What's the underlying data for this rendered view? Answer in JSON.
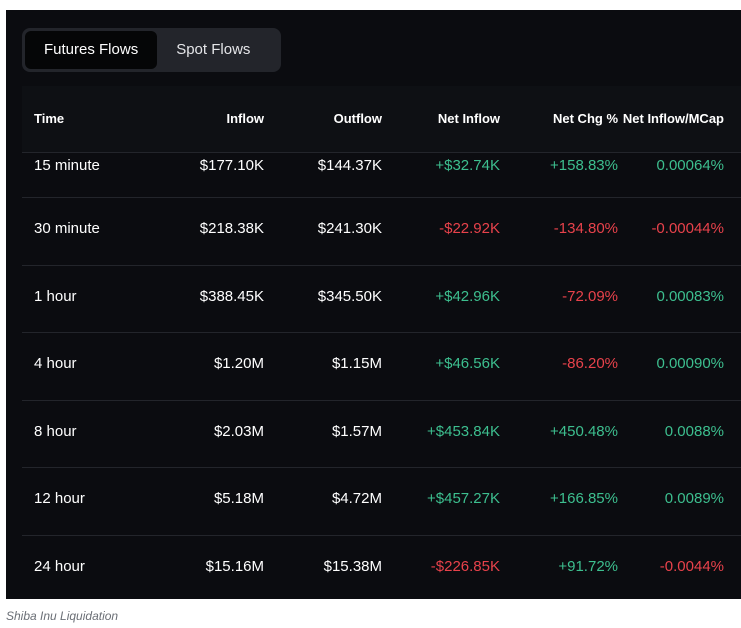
{
  "tabs": [
    {
      "label": "Futures Flows",
      "active": true
    },
    {
      "label": "Spot Flows",
      "active": false
    }
  ],
  "table": {
    "columns": [
      "Time",
      "Inflow",
      "Outflow",
      "Net Inflow",
      "Net Chg %",
      "Net Inflow/MCap"
    ],
    "rows": [
      {
        "time": "15 minute",
        "inflow": "$177.10K",
        "outflow": "$144.37K",
        "net_inflow": "+$32.74K",
        "net_chg": "+158.83%",
        "mcap": "0.00064%"
      },
      {
        "time": "30 minute",
        "inflow": "$218.38K",
        "outflow": "$241.30K",
        "net_inflow": "-$22.92K",
        "net_chg": "-134.80%",
        "mcap": "-0.00044%"
      },
      {
        "time": "1 hour",
        "inflow": "$388.45K",
        "outflow": "$345.50K",
        "net_inflow": "+$42.96K",
        "net_chg": "-72.09%",
        "mcap": "0.00083%"
      },
      {
        "time": "4 hour",
        "inflow": "$1.20M",
        "outflow": "$1.15M",
        "net_inflow": "+$46.56K",
        "net_chg": "-86.20%",
        "mcap": "0.00090%"
      },
      {
        "time": "8 hour",
        "inflow": "$2.03M",
        "outflow": "$1.57M",
        "net_inflow": "+$453.84K",
        "net_chg": "+450.48%",
        "mcap": "0.0088%"
      },
      {
        "time": "12 hour",
        "inflow": "$5.18M",
        "outflow": "$4.72M",
        "net_inflow": "+$457.27K",
        "net_chg": "+166.85%",
        "mcap": "0.0089%"
      },
      {
        "time": "24 hour",
        "inflow": "$15.16M",
        "outflow": "$15.38M",
        "net_inflow": "-$226.85K",
        "net_chg": "+91.72%",
        "mcap": "-0.0044%"
      }
    ]
  },
  "caption": "Shiba Inu Liquidation",
  "colors": {
    "background": "#0b0c10",
    "positive": "#3dbf8f",
    "negative": "#e8424b"
  }
}
